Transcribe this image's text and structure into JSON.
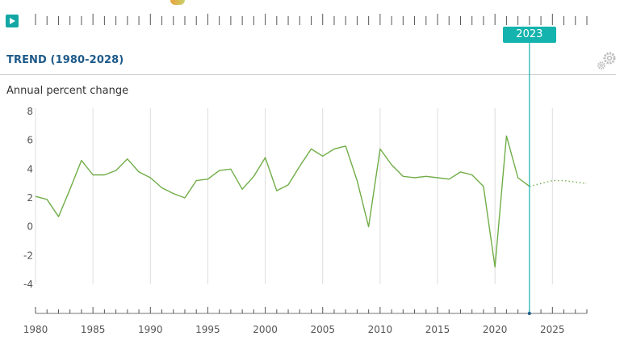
{
  "header": {
    "play_icon": "play-icon",
    "settings_icon": "gear-icon"
  },
  "section": {
    "title": "TREND (1980-2028)"
  },
  "timeline": {
    "selected_year": "2023",
    "marker_color": "#15b3ae"
  },
  "chart_data": {
    "type": "line",
    "title": "TREND (1980-2028)",
    "xlabel": "",
    "ylabel": "Annual percent change",
    "xlim": [
      1980,
      2028
    ],
    "ylim": [
      -4,
      8
    ],
    "x_ticks": [
      1980,
      1985,
      1990,
      1995,
      2000,
      2005,
      2010,
      2015,
      2020,
      2025
    ],
    "y_ticks": [
      8,
      6,
      4,
      2,
      0,
      -2,
      -4
    ],
    "grid": "vertical",
    "line_color": "#70ad47",
    "series": [
      {
        "style": "solid",
        "x": [
          1980,
          1981,
          1982,
          1983,
          1984,
          1985,
          1986,
          1987,
          1988,
          1989,
          1990,
          1991,
          1992,
          1993,
          1994,
          1995,
          1996,
          1997,
          1998,
          1999,
          2000,
          2001,
          2002,
          2003,
          2004,
          2005,
          2006,
          2007,
          2008,
          2009,
          2010,
          2011,
          2012,
          2013,
          2014,
          2015,
          2016,
          2017,
          2018,
          2019,
          2020,
          2021,
          2022,
          2023
        ],
        "values": [
          2.1,
          1.9,
          0.7,
          2.6,
          4.6,
          3.6,
          3.6,
          3.9,
          4.7,
          3.8,
          3.4,
          2.7,
          2.3,
          2.0,
          3.2,
          3.3,
          3.9,
          4.0,
          2.6,
          3.5,
          4.8,
          2.5,
          2.9,
          4.2,
          5.4,
          4.9,
          5.4,
          5.6,
          3.2,
          0.0,
          5.4,
          4.3,
          3.5,
          3.4,
          3.5,
          3.4,
          3.3,
          3.8,
          3.6,
          2.8,
          -2.8,
          6.3,
          3.4,
          2.8
        ]
      },
      {
        "style": "dotted",
        "x": [
          2023,
          2024,
          2025,
          2026,
          2027,
          2028
        ],
        "values": [
          2.8,
          3.0,
          3.2,
          3.2,
          3.1,
          3.0
        ]
      }
    ]
  }
}
